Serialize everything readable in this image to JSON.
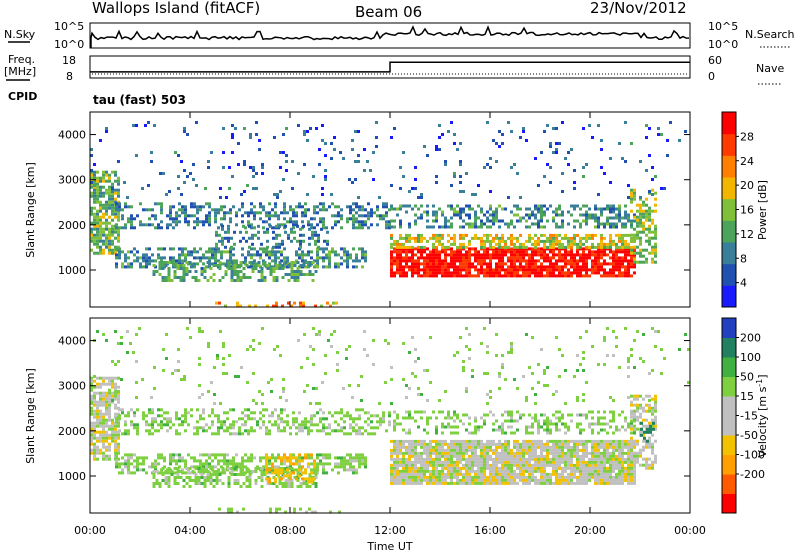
{
  "header": {
    "station": "Wallops Island (fitACF)",
    "beam": "Beam 06",
    "date": "23/Nov/2012"
  },
  "status": {
    "nsky_label": "N.Sky",
    "nsky_ticks": [
      "10^5",
      "10^0"
    ],
    "nsearch_label": "N.Search",
    "nsearch_ticks": [
      "10^5",
      "10^0"
    ],
    "freq_label_line1": "Freq.",
    "freq_label_line2": "[MHz]",
    "freq_ticks": [
      "18",
      "8"
    ],
    "nave_label": "Nave",
    "nave_ticks": [
      "60",
      "0"
    ],
    "cpid_label": "CPID",
    "cpid_text": "tau (fast) 503",
    "freq_series": [
      {
        "t_hours": 0.0,
        "mhz": 10.3
      },
      {
        "t_hours": 12.0,
        "mhz": 10.3
      },
      {
        "t_hours": 12.0,
        "mhz": 15.6
      },
      {
        "t_hours": 24.0,
        "mhz": 15.6
      }
    ]
  },
  "colors": {
    "power_scale": [
      "#1a1aff",
      "#2050b0",
      "#3a7f9a",
      "#4ca35a",
      "#7fbf3a",
      "#f2b600",
      "#ff7f00",
      "#ff3a00",
      "#ff0000"
    ],
    "velocity_scale": [
      "#ff0000",
      "#ff5a00",
      "#ff9f00",
      "#f2c200",
      "#c0c0c0",
      "#c0c0c0",
      "#7fd040",
      "#40b040",
      "#208060",
      "#2040c0"
    ]
  },
  "chart_data": [
    {
      "type": "heatmap",
      "title": "",
      "xlabel": "Time UT",
      "ylabel": "Slant Range [km]",
      "colorbar_label": "Power [dB]",
      "colorbar_ticks": [
        "28",
        "24",
        "20",
        "16",
        "12",
        "8",
        "4"
      ],
      "colorbar_range": [
        0,
        32
      ],
      "xlim": [
        0,
        24
      ],
      "ylim": [
        180,
        4500
      ],
      "xticks": [
        "00:00",
        "04:00",
        "08:00",
        "12:00",
        "16:00",
        "20:00",
        "00:00"
      ],
      "yticks": [
        "1000",
        "2000",
        "3000",
        "4000"
      ],
      "ytick_values": [
        1000,
        2000,
        3000,
        4000
      ],
      "regions": [
        {
          "t0": 0.0,
          "t1": 1.1,
          "r0": 1400,
          "r1": 3200,
          "level": 14,
          "density": 0.75
        },
        {
          "t0": 1.0,
          "t1": 12.0,
          "r0": 1950,
          "r1": 2500,
          "level": 9,
          "density": 0.4
        },
        {
          "t0": 1.0,
          "t1": 11.0,
          "r0": 1100,
          "r1": 1500,
          "level": 10,
          "density": 0.55
        },
        {
          "t0": 2.5,
          "t1": 9.0,
          "r0": 800,
          "r1": 1200,
          "level": 12,
          "density": 0.5
        },
        {
          "t0": 5.0,
          "t1": 9.5,
          "r0": 1500,
          "r1": 2000,
          "level": 9,
          "density": 0.3
        },
        {
          "t0": 12.0,
          "t1": 21.8,
          "r0": 850,
          "r1": 1500,
          "level": 30,
          "density": 0.85
        },
        {
          "t0": 12.0,
          "t1": 21.8,
          "r0": 1500,
          "r1": 1800,
          "level": 18,
          "density": 0.6
        },
        {
          "t0": 12.0,
          "t1": 21.8,
          "r0": 1950,
          "r1": 2450,
          "level": 10,
          "density": 0.4
        },
        {
          "t0": 21.6,
          "t1": 22.6,
          "r0": 1200,
          "r1": 2800,
          "level": 16,
          "density": 0.5
        },
        {
          "t0": 0.0,
          "t1": 24.0,
          "r0": 2600,
          "r1": 4300,
          "level": 6,
          "density": 0.05
        },
        {
          "t0": 5.0,
          "t1": 10.0,
          "r0": 200,
          "r1": 300,
          "level": 22,
          "density": 0.35
        }
      ]
    },
    {
      "type": "heatmap",
      "title": "",
      "xlabel": "Time UT",
      "ylabel": "Slant Range [km]",
      "colorbar_label": "Velocity [m s^-1]",
      "colorbar_ticks": [
        "200",
        "100",
        "50",
        "15",
        "-15",
        "-50",
        "-100",
        "-200"
      ],
      "colorbar_range": [
        -250,
        250
      ],
      "xlim": [
        0,
        24
      ],
      "ylim": [
        180,
        4500
      ],
      "xticks": [
        "00:00",
        "04:00",
        "08:00",
        "12:00",
        "16:00",
        "20:00",
        "00:00"
      ],
      "yticks": [
        "1000",
        "2000",
        "3000",
        "4000"
      ],
      "ytick_values": [
        1000,
        2000,
        3000,
        4000
      ],
      "regions": [
        {
          "t0": 0.0,
          "t1": 1.1,
          "r0": 1400,
          "r1": 3200,
          "vel": 0,
          "density": 0.75
        },
        {
          "t0": 1.0,
          "t1": 12.0,
          "r0": 1950,
          "r1": 2500,
          "vel": 30,
          "density": 0.4
        },
        {
          "t0": 1.0,
          "t1": 11.0,
          "r0": 1100,
          "r1": 1500,
          "vel": 30,
          "density": 0.55
        },
        {
          "t0": 2.5,
          "t1": 9.0,
          "r0": 800,
          "r1": 1200,
          "vel": 30,
          "density": 0.5
        },
        {
          "t0": 7.0,
          "t1": 9.0,
          "r0": 850,
          "r1": 1500,
          "vel": -40,
          "density": 0.4
        },
        {
          "t0": 12.0,
          "t1": 21.8,
          "r0": 850,
          "r1": 1800,
          "vel": 0,
          "density": 0.9
        },
        {
          "t0": 12.0,
          "t1": 21.8,
          "r0": 1950,
          "r1": 2450,
          "vel": 30,
          "density": 0.35
        },
        {
          "t0": 21.6,
          "t1": 22.6,
          "r0": 1200,
          "r1": 2800,
          "vel": 0,
          "density": 0.6
        },
        {
          "t0": 22.0,
          "t1": 22.5,
          "r0": 1800,
          "r1": 2200,
          "vel": 180,
          "density": 0.4
        },
        {
          "t0": 0.0,
          "t1": 24.0,
          "r0": 2600,
          "r1": 4300,
          "vel": 30,
          "density": 0.05
        },
        {
          "t0": 5.0,
          "t1": 10.0,
          "r0": 200,
          "r1": 300,
          "vel": 30,
          "density": 0.3
        }
      ]
    }
  ]
}
